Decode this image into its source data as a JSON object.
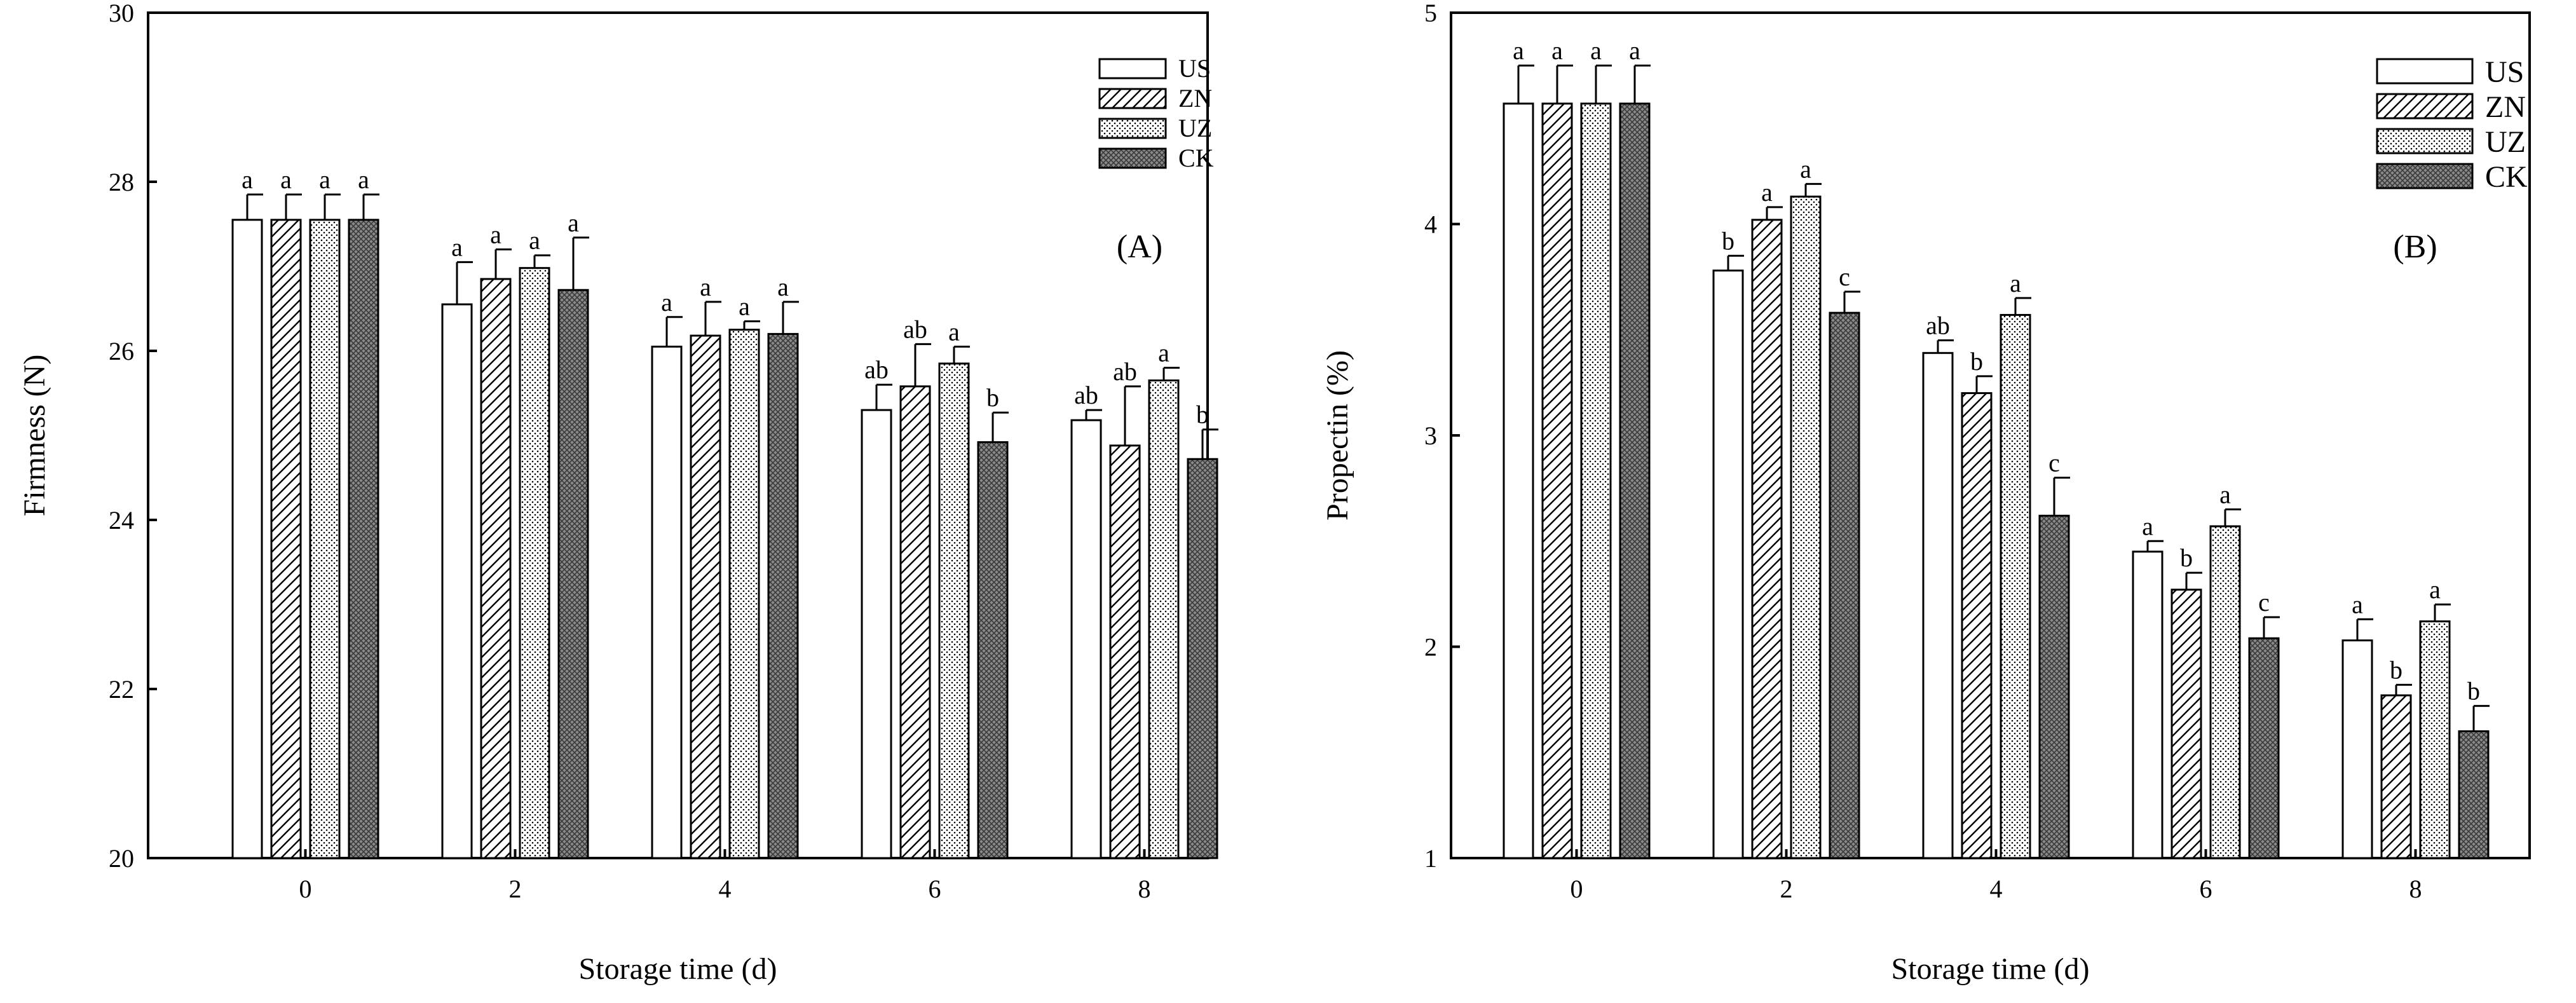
{
  "chart_data": [
    {
      "type": "bar",
      "panel_label": "(A)",
      "categories": [
        "0",
        "2",
        "4",
        "6",
        "8"
      ],
      "xlabel": "Storage time (d)",
      "ylabel": "Firmness (N)",
      "ylim": [
        20,
        30
      ],
      "yticks": [
        "20",
        "22",
        "24",
        "26",
        "28",
        "30"
      ],
      "legend_position": "top-right",
      "series": [
        {
          "name": "US",
          "pattern": "open",
          "values": [
            27.55,
            26.55,
            26.05,
            25.3,
            25.18
          ],
          "errors": [
            0.3,
            0.5,
            0.35,
            0.3,
            0.12
          ],
          "letters": [
            "a",
            "a",
            "a",
            "ab",
            "ab"
          ]
        },
        {
          "name": "ZN",
          "pattern": "hatch",
          "values": [
            27.55,
            26.85,
            26.18,
            25.58,
            24.88
          ],
          "errors": [
            0.3,
            0.35,
            0.4,
            0.5,
            0.7
          ],
          "letters": [
            "a",
            "a",
            "a",
            "ab",
            "ab"
          ]
        },
        {
          "name": "UZ",
          "pattern": "dots",
          "values": [
            27.55,
            26.98,
            26.25,
            25.85,
            25.65
          ],
          "errors": [
            0.3,
            0.15,
            0.1,
            0.2,
            0.15
          ],
          "letters": [
            "a",
            "a",
            "a",
            "a",
            "a"
          ]
        },
        {
          "name": "CK",
          "pattern": "cross",
          "values": [
            27.55,
            26.72,
            26.2,
            24.92,
            24.72
          ],
          "errors": [
            0.3,
            0.62,
            0.38,
            0.35,
            0.35
          ],
          "letters": [
            "a",
            "a",
            "a",
            "b",
            "b"
          ]
        }
      ]
    },
    {
      "type": "bar",
      "panel_label": "(B)",
      "categories": [
        "0",
        "2",
        "4",
        "6",
        "8"
      ],
      "xlabel": "Storage time (d)",
      "ylabel": "Propectin (%)",
      "ylim": [
        1,
        5
      ],
      "yticks": [
        "1",
        "2",
        "3",
        "4",
        "5"
      ],
      "legend_position": "top-right",
      "series": [
        {
          "name": "US",
          "pattern": "open",
          "values": [
            4.57,
            3.78,
            3.39,
            2.45,
            2.03
          ],
          "errors": [
            0.18,
            0.07,
            0.06,
            0.05,
            0.1
          ],
          "letters": [
            "a",
            "b",
            "ab",
            "a",
            "a"
          ]
        },
        {
          "name": "ZN",
          "pattern": "hatch",
          "values": [
            4.57,
            4.02,
            3.2,
            2.27,
            1.77
          ],
          "errors": [
            0.18,
            0.06,
            0.08,
            0.08,
            0.05
          ],
          "letters": [
            "a",
            "a",
            "b",
            "b",
            "b"
          ]
        },
        {
          "name": "UZ",
          "pattern": "dots",
          "values": [
            4.57,
            4.13,
            3.57,
            2.57,
            2.12
          ],
          "errors": [
            0.18,
            0.06,
            0.08,
            0.08,
            0.08
          ],
          "letters": [
            "a",
            "a",
            "a",
            "a",
            "a"
          ]
        },
        {
          "name": "CK",
          "pattern": "cross",
          "values": [
            4.57,
            3.58,
            2.62,
            2.04,
            1.6
          ],
          "errors": [
            0.18,
            0.1,
            0.18,
            0.1,
            0.12
          ],
          "letters": [
            "a",
            "c",
            "c",
            "c",
            "b"
          ]
        }
      ]
    }
  ]
}
